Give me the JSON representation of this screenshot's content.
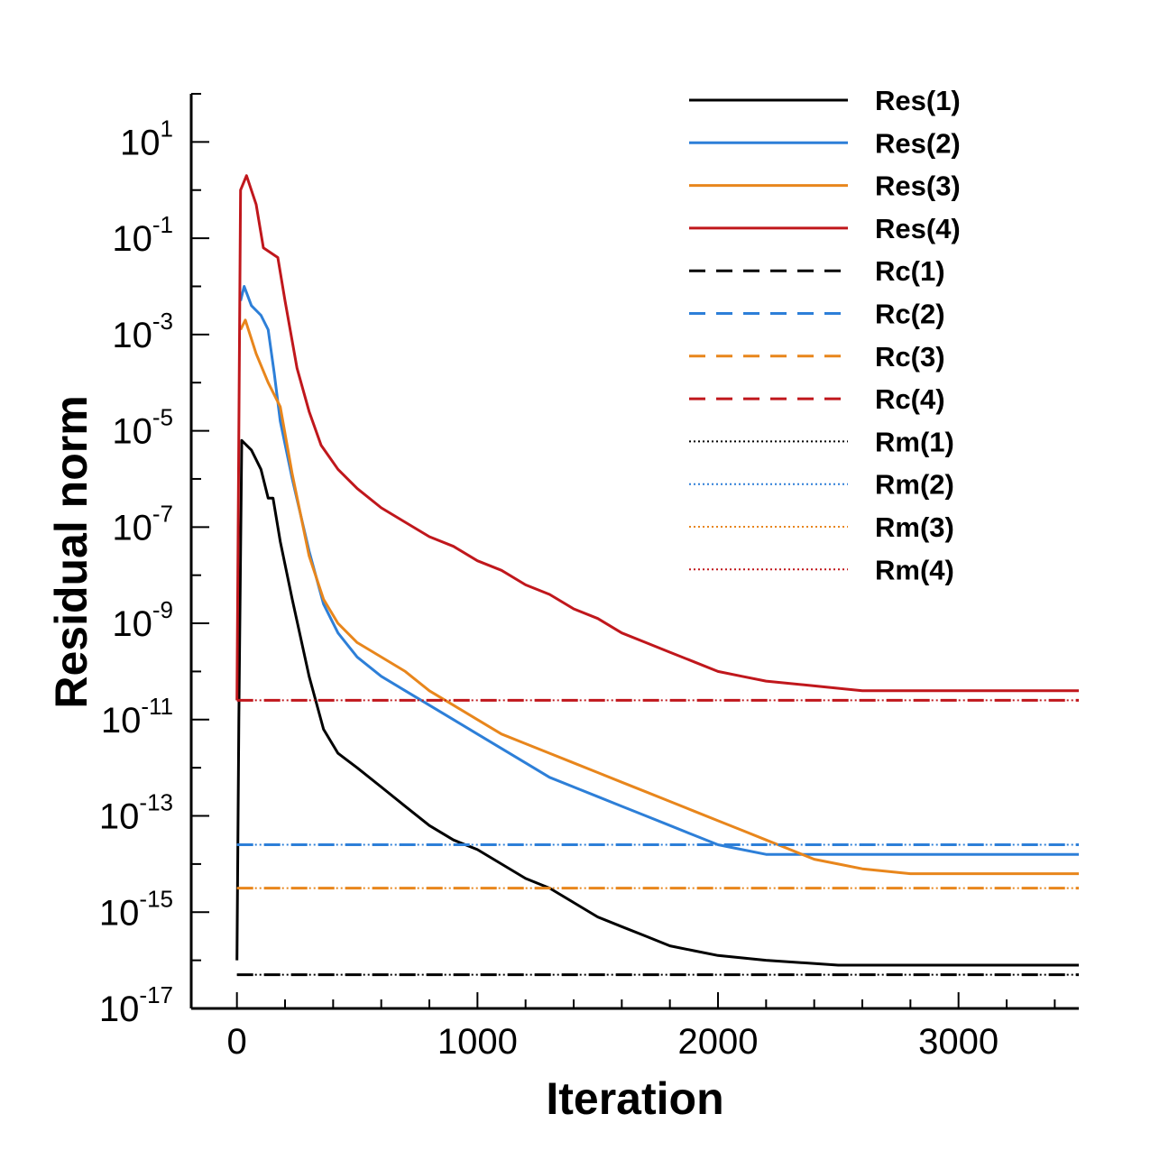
{
  "chart_data": {
    "type": "line",
    "xlabel": "Iteration",
    "ylabel": "Residual norm",
    "xlim": [
      -190,
      3500
    ],
    "ylim_log10": [
      -17,
      2
    ],
    "y_scale": "log",
    "x_ticks": [
      0,
      1000,
      2000,
      3000
    ],
    "x_tick_labels": [
      "0",
      "1000",
      "2000",
      "3000"
    ],
    "y_ticks_log10": [
      1,
      -1,
      -3,
      -5,
      -7,
      -9,
      -11,
      -13,
      -15,
      -17
    ],
    "y_tick_base": "10",
    "y_tick_exponents": [
      "1",
      "-1",
      "-3",
      "-5",
      "-7",
      "-9",
      "-11",
      "-13",
      "-15",
      "-17"
    ],
    "legend_position": "top-right",
    "grid": false,
    "colors": {
      "series1": "#000000",
      "series2": "#2d7fd8",
      "series3": "#e8861c",
      "series4": "#c0171c"
    },
    "series": [
      {
        "name": "Res(1)",
        "style": "solid",
        "color": "#000000",
        "points": [
          [
            0,
            -16.0
          ],
          [
            8,
            -11.0
          ],
          [
            20,
            -5.2
          ],
          [
            60,
            -5.4
          ],
          [
            100,
            -5.8
          ],
          [
            130,
            -6.4
          ],
          [
            150,
            -6.4
          ],
          [
            180,
            -7.3
          ],
          [
            230,
            -8.5
          ],
          [
            300,
            -10.1
          ],
          [
            360,
            -11.2
          ],
          [
            420,
            -11.7
          ],
          [
            500,
            -12.0
          ],
          [
            600,
            -12.4
          ],
          [
            700,
            -12.8
          ],
          [
            800,
            -13.2
          ],
          [
            900,
            -13.5
          ],
          [
            1000,
            -13.7
          ],
          [
            1100,
            -14.0
          ],
          [
            1200,
            -14.3
          ],
          [
            1300,
            -14.5
          ],
          [
            1400,
            -14.8
          ],
          [
            1500,
            -15.1
          ],
          [
            1600,
            -15.3
          ],
          [
            1700,
            -15.5
          ],
          [
            1800,
            -15.7
          ],
          [
            1900,
            -15.8
          ],
          [
            2000,
            -15.9
          ],
          [
            2200,
            -16.0
          ],
          [
            2500,
            -16.1
          ],
          [
            3000,
            -16.1
          ],
          [
            3500,
            -16.1
          ]
        ]
      },
      {
        "name": "Res(2)",
        "style": "solid",
        "color": "#2d7fd8",
        "points": [
          [
            15,
            -2.3
          ],
          [
            30,
            -2.0
          ],
          [
            60,
            -2.4
          ],
          [
            100,
            -2.6
          ],
          [
            130,
            -2.9
          ],
          [
            155,
            -3.8
          ],
          [
            180,
            -4.8
          ],
          [
            230,
            -6.0
          ],
          [
            300,
            -7.5
          ],
          [
            360,
            -8.6
          ],
          [
            420,
            -9.2
          ],
          [
            500,
            -9.7
          ],
          [
            600,
            -10.1
          ],
          [
            700,
            -10.4
          ],
          [
            800,
            -10.7
          ],
          [
            900,
            -11.0
          ],
          [
            1000,
            -11.3
          ],
          [
            1100,
            -11.6
          ],
          [
            1200,
            -11.9
          ],
          [
            1300,
            -12.2
          ],
          [
            1400,
            -12.4
          ],
          [
            1500,
            -12.6
          ],
          [
            1600,
            -12.8
          ],
          [
            1700,
            -13.0
          ],
          [
            1800,
            -13.2
          ],
          [
            1900,
            -13.4
          ],
          [
            2000,
            -13.6
          ],
          [
            2100,
            -13.7
          ],
          [
            2200,
            -13.8
          ],
          [
            2500,
            -13.8
          ],
          [
            3000,
            -13.8
          ],
          [
            3500,
            -13.8
          ]
        ]
      },
      {
        "name": "Res(3)",
        "style": "solid",
        "color": "#e8861c",
        "points": [
          [
            15,
            -2.9
          ],
          [
            35,
            -2.7
          ],
          [
            80,
            -3.4
          ],
          [
            130,
            -4.0
          ],
          [
            180,
            -4.5
          ],
          [
            230,
            -5.9
          ],
          [
            300,
            -7.6
          ],
          [
            360,
            -8.5
          ],
          [
            420,
            -9.0
          ],
          [
            500,
            -9.4
          ],
          [
            600,
            -9.7
          ],
          [
            700,
            -10.0
          ],
          [
            800,
            -10.4
          ],
          [
            900,
            -10.7
          ],
          [
            1000,
            -11.0
          ],
          [
            1100,
            -11.3
          ],
          [
            1200,
            -11.5
          ],
          [
            1300,
            -11.7
          ],
          [
            1400,
            -11.9
          ],
          [
            1500,
            -12.1
          ],
          [
            1600,
            -12.3
          ],
          [
            1700,
            -12.5
          ],
          [
            1800,
            -12.7
          ],
          [
            1900,
            -12.9
          ],
          [
            2000,
            -13.1
          ],
          [
            2100,
            -13.3
          ],
          [
            2200,
            -13.5
          ],
          [
            2300,
            -13.7
          ],
          [
            2400,
            -13.9
          ],
          [
            2500,
            -14.0
          ],
          [
            2600,
            -14.1
          ],
          [
            2800,
            -14.2
          ],
          [
            3000,
            -14.2
          ],
          [
            3500,
            -14.2
          ]
        ]
      },
      {
        "name": "Res(4)",
        "style": "solid",
        "color": "#c0171c",
        "points": [
          [
            0,
            -10.6
          ],
          [
            8,
            -5.0
          ],
          [
            15,
            0.0
          ],
          [
            40,
            0.3
          ],
          [
            80,
            -0.3
          ],
          [
            110,
            -1.2
          ],
          [
            140,
            -1.3
          ],
          [
            170,
            -1.4
          ],
          [
            200,
            -2.3
          ],
          [
            250,
            -3.7
          ],
          [
            300,
            -4.6
          ],
          [
            350,
            -5.3
          ],
          [
            420,
            -5.8
          ],
          [
            500,
            -6.2
          ],
          [
            600,
            -6.6
          ],
          [
            700,
            -6.9
          ],
          [
            800,
            -7.2
          ],
          [
            900,
            -7.4
          ],
          [
            1000,
            -7.7
          ],
          [
            1100,
            -7.9
          ],
          [
            1200,
            -8.2
          ],
          [
            1300,
            -8.4
          ],
          [
            1400,
            -8.7
          ],
          [
            1500,
            -8.9
          ],
          [
            1600,
            -9.2
          ],
          [
            1700,
            -9.4
          ],
          [
            1800,
            -9.6
          ],
          [
            1900,
            -9.8
          ],
          [
            2000,
            -10.0
          ],
          [
            2100,
            -10.1
          ],
          [
            2200,
            -10.2
          ],
          [
            2400,
            -10.3
          ],
          [
            2600,
            -10.4
          ],
          [
            3000,
            -10.4
          ],
          [
            3500,
            -10.4
          ]
        ]
      },
      {
        "name": "Rc(1)",
        "style": "dashed",
        "color": "#000000",
        "points": [
          [
            0,
            -16.3
          ],
          [
            3500,
            -16.3
          ]
        ]
      },
      {
        "name": "Rc(2)",
        "style": "dashed",
        "color": "#2d7fd8",
        "points": [
          [
            0,
            -13.6
          ],
          [
            3500,
            -13.6
          ]
        ]
      },
      {
        "name": "Rc(3)",
        "style": "dashed",
        "color": "#e8861c",
        "points": [
          [
            0,
            -14.5
          ],
          [
            3500,
            -14.5
          ]
        ]
      },
      {
        "name": "Rc(4)",
        "style": "dashed",
        "color": "#c0171c",
        "points": [
          [
            0,
            -10.6
          ],
          [
            3500,
            -10.6
          ]
        ]
      },
      {
        "name": "Rm(1)",
        "style": "dotted",
        "color": "#000000",
        "points": [
          [
            0,
            -16.3
          ],
          [
            3500,
            -16.3
          ]
        ]
      },
      {
        "name": "Rm(2)",
        "style": "dotted",
        "color": "#2d7fd8",
        "points": [
          [
            0,
            -13.6
          ],
          [
            3500,
            -13.6
          ]
        ]
      },
      {
        "name": "Rm(3)",
        "style": "dotted",
        "color": "#e8861c",
        "points": [
          [
            0,
            -14.5
          ],
          [
            3500,
            -14.5
          ]
        ]
      },
      {
        "name": "Rm(4)",
        "style": "dotted",
        "color": "#c0171c",
        "points": [
          [
            0,
            -10.6
          ],
          [
            3500,
            -10.6
          ]
        ]
      }
    ]
  }
}
